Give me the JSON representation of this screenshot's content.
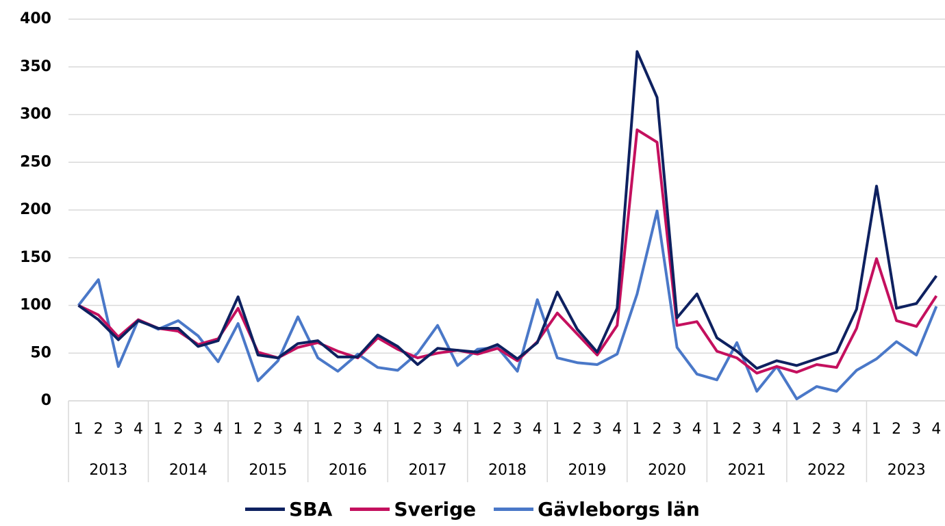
{
  "chart_data": {
    "type": "line",
    "categories": [
      "1",
      "2",
      "3",
      "4",
      "1",
      "2",
      "3",
      "4",
      "1",
      "2",
      "3",
      "4",
      "1",
      "2",
      "3",
      "4",
      "1",
      "2",
      "3",
      "4",
      "1",
      "2",
      "3",
      "4",
      "1",
      "2",
      "3",
      "4",
      "1",
      "2",
      "3",
      "4",
      "1",
      "2",
      "3",
      "4",
      "1",
      "2",
      "3",
      "4",
      "1",
      "2",
      "3",
      "4"
    ],
    "groups": [
      "2013",
      "2014",
      "2015",
      "2016",
      "2017",
      "2018",
      "2019",
      "2020",
      "2021",
      "2022",
      "2023"
    ],
    "series": [
      {
        "name": "SBA",
        "color": "#0e2160",
        "values": [
          100,
          85,
          64,
          84,
          76,
          76,
          57,
          63,
          109,
          48,
          45,
          60,
          63,
          46,
          46,
          69,
          57,
          38,
          55,
          53,
          51,
          59,
          44,
          61,
          114,
          75,
          51,
          97,
          366,
          318,
          87,
          112,
          66,
          52,
          34,
          42,
          37,
          44,
          51,
          96,
          225,
          97,
          102,
          131
        ]
      },
      {
        "name": "Sverige",
        "color": "#c4105e",
        "values": [
          100,
          90,
          67,
          85,
          76,
          73,
          59,
          65,
          97,
          51,
          45,
          56,
          61,
          52,
          45,
          66,
          54,
          45,
          50,
          53,
          49,
          55,
          42,
          62,
          92,
          70,
          48,
          79,
          284,
          271,
          79,
          83,
          52,
          45,
          29,
          36,
          30,
          38,
          35,
          76,
          149,
          84,
          78,
          110
        ]
      },
      {
        "name": "Gävleborgs län",
        "color": "#4a78c8",
        "values": [
          100,
          127,
          36,
          85,
          75,
          84,
          68,
          41,
          81,
          21,
          42,
          88,
          45,
          31,
          49,
          35,
          32,
          50,
          79,
          37,
          54,
          56,
          31,
          106,
          45,
          40,
          38,
          49,
          112,
          199,
          56,
          28,
          22,
          61,
          10,
          36,
          2,
          15,
          10,
          32,
          44,
          62,
          48,
          99
        ]
      }
    ],
    "ylim": [
      0,
      400
    ],
    "yticks": [
      0,
      50,
      100,
      150,
      200,
      250,
      300,
      350,
      400
    ],
    "grid": true,
    "legend": "bottom"
  }
}
